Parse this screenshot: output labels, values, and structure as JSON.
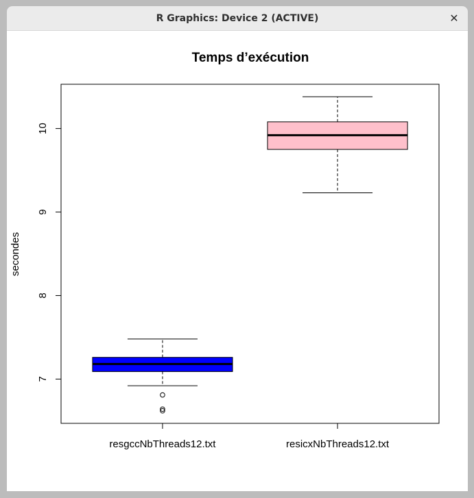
{
  "window": {
    "title": "R Graphics: Device 2 (ACTIVE)",
    "close_label": "✕"
  },
  "chart_data": {
    "type": "boxplot",
    "title": "Temps d’exécution",
    "xlabel": "",
    "ylabel": "secondes",
    "ylim": [
      6.47,
      10.53
    ],
    "yticks": [
      7,
      8,
      9,
      10
    ],
    "categories": [
      "resgccNbThreads12.txt",
      "resicxNbThreads12.txt"
    ],
    "boxes": [
      {
        "name": "resgccNbThreads12.txt",
        "color": "#0000ff",
        "whisker_low": 6.92,
        "q1": 7.09,
        "median": 7.18,
        "q3": 7.26,
        "whisker_high": 7.48,
        "outliers": [
          6.81,
          6.62,
          6.64
        ]
      },
      {
        "name": "resicxNbThreads12.txt",
        "color": "#ffc0cb",
        "whisker_low": 9.23,
        "q1": 9.75,
        "median": 9.92,
        "q3": 10.08,
        "whisker_high": 10.38,
        "outliers": []
      }
    ],
    "grid": false,
    "legend": "none"
  }
}
